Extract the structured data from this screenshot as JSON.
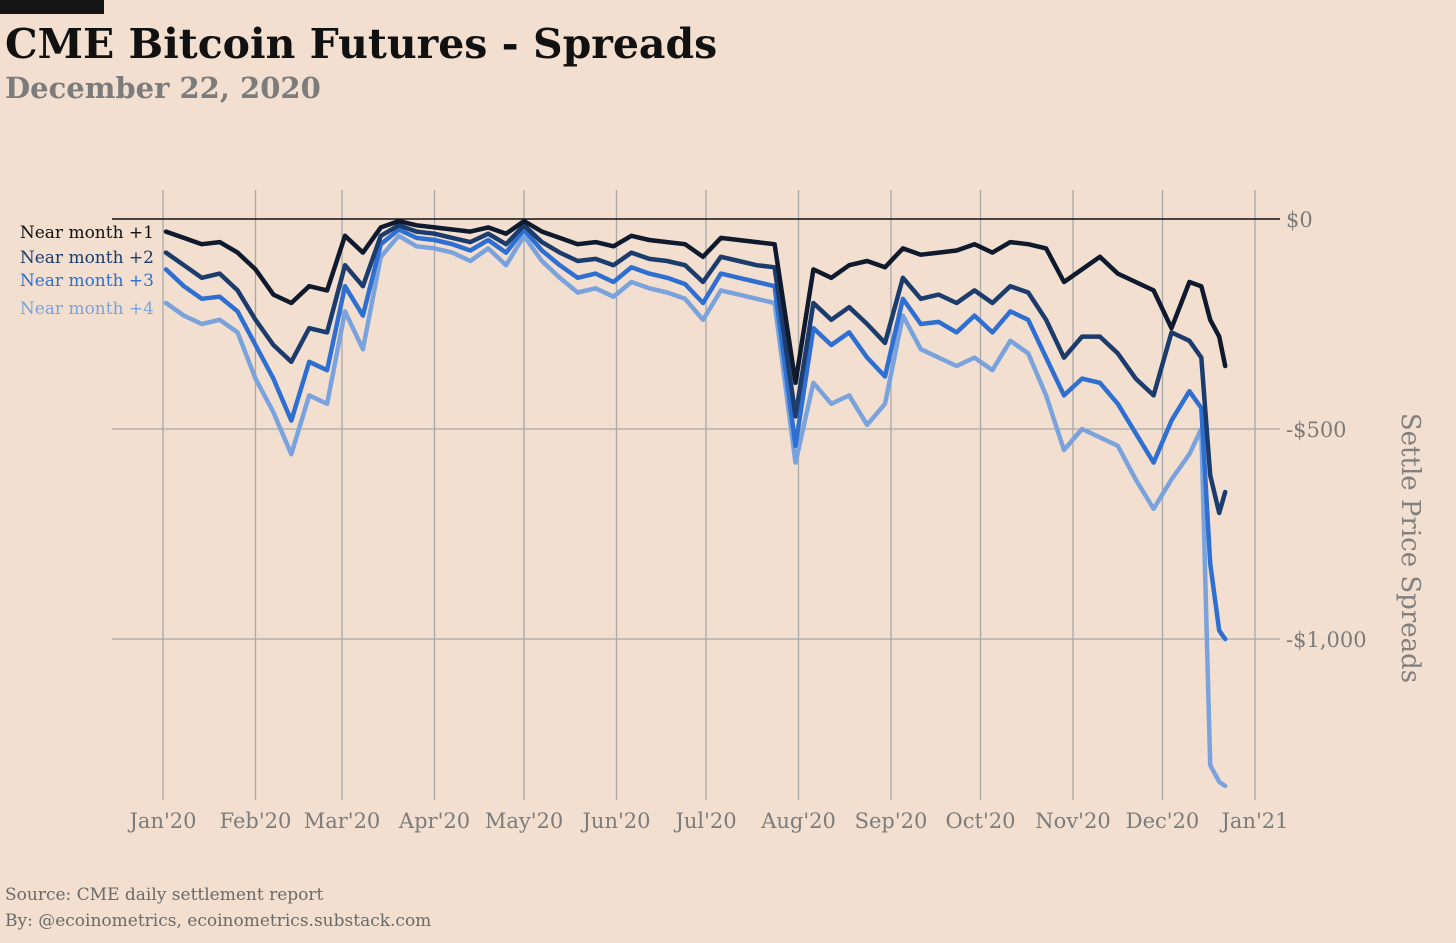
{
  "title": "CME Bitcoin Futures - Spreads",
  "subtitle": "December 22, 2020",
  "footer": {
    "source": "Source: CME daily settlement report",
    "by": "By: @ecoinometrics, ecoinometrics.substack.com"
  },
  "chart_data": {
    "type": "line",
    "ylabel": "Settle Price Spreads",
    "ylim": [
      -1380,
      20
    ],
    "yticks": [
      {
        "value": 0,
        "label": "$0"
      },
      {
        "value": -500,
        "label": "-$500"
      },
      {
        "value": -1000,
        "label": "-$1,000"
      }
    ],
    "xticks": [
      {
        "date": "2020-01-01",
        "label": "Jan'20"
      },
      {
        "date": "2020-02-01",
        "label": "Feb'20"
      },
      {
        "date": "2020-03-01",
        "label": "Mar'20"
      },
      {
        "date": "2020-04-01",
        "label": "Apr'20"
      },
      {
        "date": "2020-05-01",
        "label": "May'20"
      },
      {
        "date": "2020-06-01",
        "label": "Jun'20"
      },
      {
        "date": "2020-07-01",
        "label": "Jul'20"
      },
      {
        "date": "2020-08-01",
        "label": "Aug'20"
      },
      {
        "date": "2020-09-01",
        "label": "Sep'20"
      },
      {
        "date": "2020-10-01",
        "label": "Oct'20"
      },
      {
        "date": "2020-11-01",
        "label": "Nov'20"
      },
      {
        "date": "2020-12-01",
        "label": "Dec'20"
      },
      {
        "date": "2021-01-01",
        "label": "Jan'21"
      }
    ],
    "grid": "vertical and horizontal",
    "legend": "top-left",
    "y_axis_side": "right",
    "series": [
      {
        "name": "Near month +1",
        "color": "#0f1a2e",
        "x": [
          "2020-01-02",
          "2020-01-08",
          "2020-01-14",
          "2020-01-20",
          "2020-01-26",
          "2020-02-01",
          "2020-02-07",
          "2020-02-13",
          "2020-02-19",
          "2020-02-25",
          "2020-03-02",
          "2020-03-08",
          "2020-03-14",
          "2020-03-20",
          "2020-03-26",
          "2020-04-01",
          "2020-04-07",
          "2020-04-13",
          "2020-04-19",
          "2020-04-25",
          "2020-05-01",
          "2020-05-07",
          "2020-05-13",
          "2020-05-19",
          "2020-05-25",
          "2020-05-31",
          "2020-06-06",
          "2020-06-12",
          "2020-06-18",
          "2020-06-24",
          "2020-06-30",
          "2020-07-06",
          "2020-07-12",
          "2020-07-18",
          "2020-07-24",
          "2020-07-31",
          "2020-08-06",
          "2020-08-12",
          "2020-08-18",
          "2020-08-24",
          "2020-08-30",
          "2020-09-05",
          "2020-09-11",
          "2020-09-17",
          "2020-09-23",
          "2020-09-29",
          "2020-10-05",
          "2020-10-11",
          "2020-10-17",
          "2020-10-23",
          "2020-10-29",
          "2020-11-04",
          "2020-11-10",
          "2020-11-16",
          "2020-11-22",
          "2020-11-28",
          "2020-12-04",
          "2020-12-10",
          "2020-12-14",
          "2020-12-17",
          "2020-12-20",
          "2020-12-22"
        ],
        "values": [
          -30,
          -45,
          -60,
          -55,
          -80,
          -120,
          -180,
          -200,
          -160,
          -170,
          -40,
          -80,
          -20,
          -5,
          -15,
          -20,
          -25,
          -30,
          -20,
          -35,
          -5,
          -30,
          -45,
          -60,
          -55,
          -65,
          -40,
          -50,
          -55,
          -60,
          -90,
          -45,
          -50,
          -55,
          -60,
          -390,
          -120,
          -140,
          -110,
          -100,
          -115,
          -70,
          -85,
          -80,
          -75,
          -60,
          -80,
          -55,
          -60,
          -70,
          -150,
          -120,
          -90,
          -130,
          -150,
          -170,
          -260,
          -150,
          -160,
          -240,
          -280,
          -350
        ]
      },
      {
        "name": "Near month +2",
        "color": "#1b3c6c",
        "x": [
          "2020-01-02",
          "2020-01-08",
          "2020-01-14",
          "2020-01-20",
          "2020-01-26",
          "2020-02-01",
          "2020-02-07",
          "2020-02-13",
          "2020-02-19",
          "2020-02-25",
          "2020-03-02",
          "2020-03-08",
          "2020-03-14",
          "2020-03-20",
          "2020-03-26",
          "2020-04-01",
          "2020-04-07",
          "2020-04-13",
          "2020-04-19",
          "2020-04-25",
          "2020-05-01",
          "2020-05-07",
          "2020-05-13",
          "2020-05-19",
          "2020-05-25",
          "2020-05-31",
          "2020-06-06",
          "2020-06-12",
          "2020-06-18",
          "2020-06-24",
          "2020-06-30",
          "2020-07-06",
          "2020-07-12",
          "2020-07-18",
          "2020-07-24",
          "2020-07-31",
          "2020-08-06",
          "2020-08-12",
          "2020-08-18",
          "2020-08-24",
          "2020-08-30",
          "2020-09-05",
          "2020-09-11",
          "2020-09-17",
          "2020-09-23",
          "2020-09-29",
          "2020-10-05",
          "2020-10-11",
          "2020-10-17",
          "2020-10-23",
          "2020-10-29",
          "2020-11-04",
          "2020-11-10",
          "2020-11-16",
          "2020-11-22",
          "2020-11-28",
          "2020-12-04",
          "2020-12-10",
          "2020-12-14",
          "2020-12-17",
          "2020-12-20",
          "2020-12-22"
        ],
        "values": [
          -80,
          -110,
          -140,
          -130,
          -170,
          -240,
          -300,
          -340,
          -260,
          -270,
          -110,
          -160,
          -40,
          -15,
          -30,
          -35,
          -45,
          -55,
          -35,
          -60,
          -15,
          -55,
          -80,
          -100,
          -95,
          -110,
          -80,
          -95,
          -100,
          -110,
          -150,
          -90,
          -100,
          -110,
          -115,
          -470,
          -200,
          -240,
          -210,
          -250,
          -295,
          -140,
          -190,
          -180,
          -200,
          -170,
          -200,
          -160,
          -175,
          -240,
          -330,
          -280,
          -280,
          -320,
          -380,
          -420,
          -270,
          -290,
          -330,
          -610,
          -700,
          -650
        ]
      },
      {
        "name": "Near month +3",
        "color": "#2e6fd1",
        "x": [
          "2020-01-02",
          "2020-01-08",
          "2020-01-14",
          "2020-01-20",
          "2020-01-26",
          "2020-02-01",
          "2020-02-07",
          "2020-02-13",
          "2020-02-19",
          "2020-02-25",
          "2020-03-02",
          "2020-03-08",
          "2020-03-14",
          "2020-03-20",
          "2020-03-26",
          "2020-04-01",
          "2020-04-07",
          "2020-04-13",
          "2020-04-19",
          "2020-04-25",
          "2020-05-01",
          "2020-05-07",
          "2020-05-13",
          "2020-05-19",
          "2020-05-25",
          "2020-05-31",
          "2020-06-06",
          "2020-06-12",
          "2020-06-18",
          "2020-06-24",
          "2020-06-30",
          "2020-07-06",
          "2020-07-12",
          "2020-07-18",
          "2020-07-24",
          "2020-07-31",
          "2020-08-06",
          "2020-08-12",
          "2020-08-18",
          "2020-08-24",
          "2020-08-30",
          "2020-09-05",
          "2020-09-11",
          "2020-09-17",
          "2020-09-23",
          "2020-09-29",
          "2020-10-05",
          "2020-10-11",
          "2020-10-17",
          "2020-10-23",
          "2020-10-29",
          "2020-11-04",
          "2020-11-10",
          "2020-11-16",
          "2020-11-22",
          "2020-11-28",
          "2020-12-04",
          "2020-12-10",
          "2020-12-14",
          "2020-12-17",
          "2020-12-20",
          "2020-12-22"
        ],
        "values": [
          -120,
          -160,
          -190,
          -185,
          -220,
          -300,
          -380,
          -480,
          -340,
          -360,
          -160,
          -230,
          -60,
          -25,
          -45,
          -50,
          -60,
          -75,
          -50,
          -80,
          -25,
          -75,
          -110,
          -140,
          -130,
          -150,
          -115,
          -130,
          -140,
          -155,
          -200,
          -130,
          -140,
          -150,
          -160,
          -540,
          -260,
          -300,
          -270,
          -330,
          -375,
          -190,
          -250,
          -245,
          -270,
          -230,
          -270,
          -220,
          -240,
          -330,
          -420,
          -380,
          -390,
          -440,
          -510,
          -580,
          -480,
          -410,
          -450,
          -820,
          -980,
          -1000
        ]
      },
      {
        "name": "Near month +4",
        "color": "#7aa3dd",
        "x": [
          "2020-01-02",
          "2020-01-08",
          "2020-01-14",
          "2020-01-20",
          "2020-01-26",
          "2020-02-01",
          "2020-02-07",
          "2020-02-13",
          "2020-02-19",
          "2020-02-25",
          "2020-03-02",
          "2020-03-08",
          "2020-03-14",
          "2020-03-20",
          "2020-03-26",
          "2020-04-01",
          "2020-04-07",
          "2020-04-13",
          "2020-04-19",
          "2020-04-25",
          "2020-05-01",
          "2020-05-07",
          "2020-05-13",
          "2020-05-19",
          "2020-05-25",
          "2020-05-31",
          "2020-06-06",
          "2020-06-12",
          "2020-06-18",
          "2020-06-24",
          "2020-06-30",
          "2020-07-06",
          "2020-07-12",
          "2020-07-18",
          "2020-07-24",
          "2020-07-31",
          "2020-08-06",
          "2020-08-12",
          "2020-08-18",
          "2020-08-24",
          "2020-08-30",
          "2020-09-05",
          "2020-09-11",
          "2020-09-17",
          "2020-09-23",
          "2020-09-29",
          "2020-10-05",
          "2020-10-11",
          "2020-10-17",
          "2020-10-23",
          "2020-10-29",
          "2020-11-04",
          "2020-11-10",
          "2020-11-16",
          "2020-11-22",
          "2020-11-28",
          "2020-12-04",
          "2020-12-10",
          "2020-12-14",
          "2020-12-17",
          "2020-12-20",
          "2020-12-22"
        ],
        "values": [
          -200,
          -230,
          -250,
          -240,
          -270,
          -380,
          -460,
          -560,
          -420,
          -440,
          -220,
          -310,
          -90,
          -40,
          -65,
          -70,
          -80,
          -100,
          -70,
          -110,
          -40,
          -100,
          -140,
          -175,
          -165,
          -185,
          -150,
          -165,
          -175,
          -190,
          -240,
          -170,
          -180,
          -190,
          -200,
          -580,
          -390,
          -440,
          -420,
          -490,
          -440,
          -230,
          -310,
          -330,
          -350,
          -330,
          -360,
          -290,
          -320,
          -420,
          -550,
          -500,
          -520,
          -540,
          -620,
          -690,
          -620,
          -560,
          -500,
          -1300,
          -1340,
          -1350
        ]
      }
    ]
  }
}
